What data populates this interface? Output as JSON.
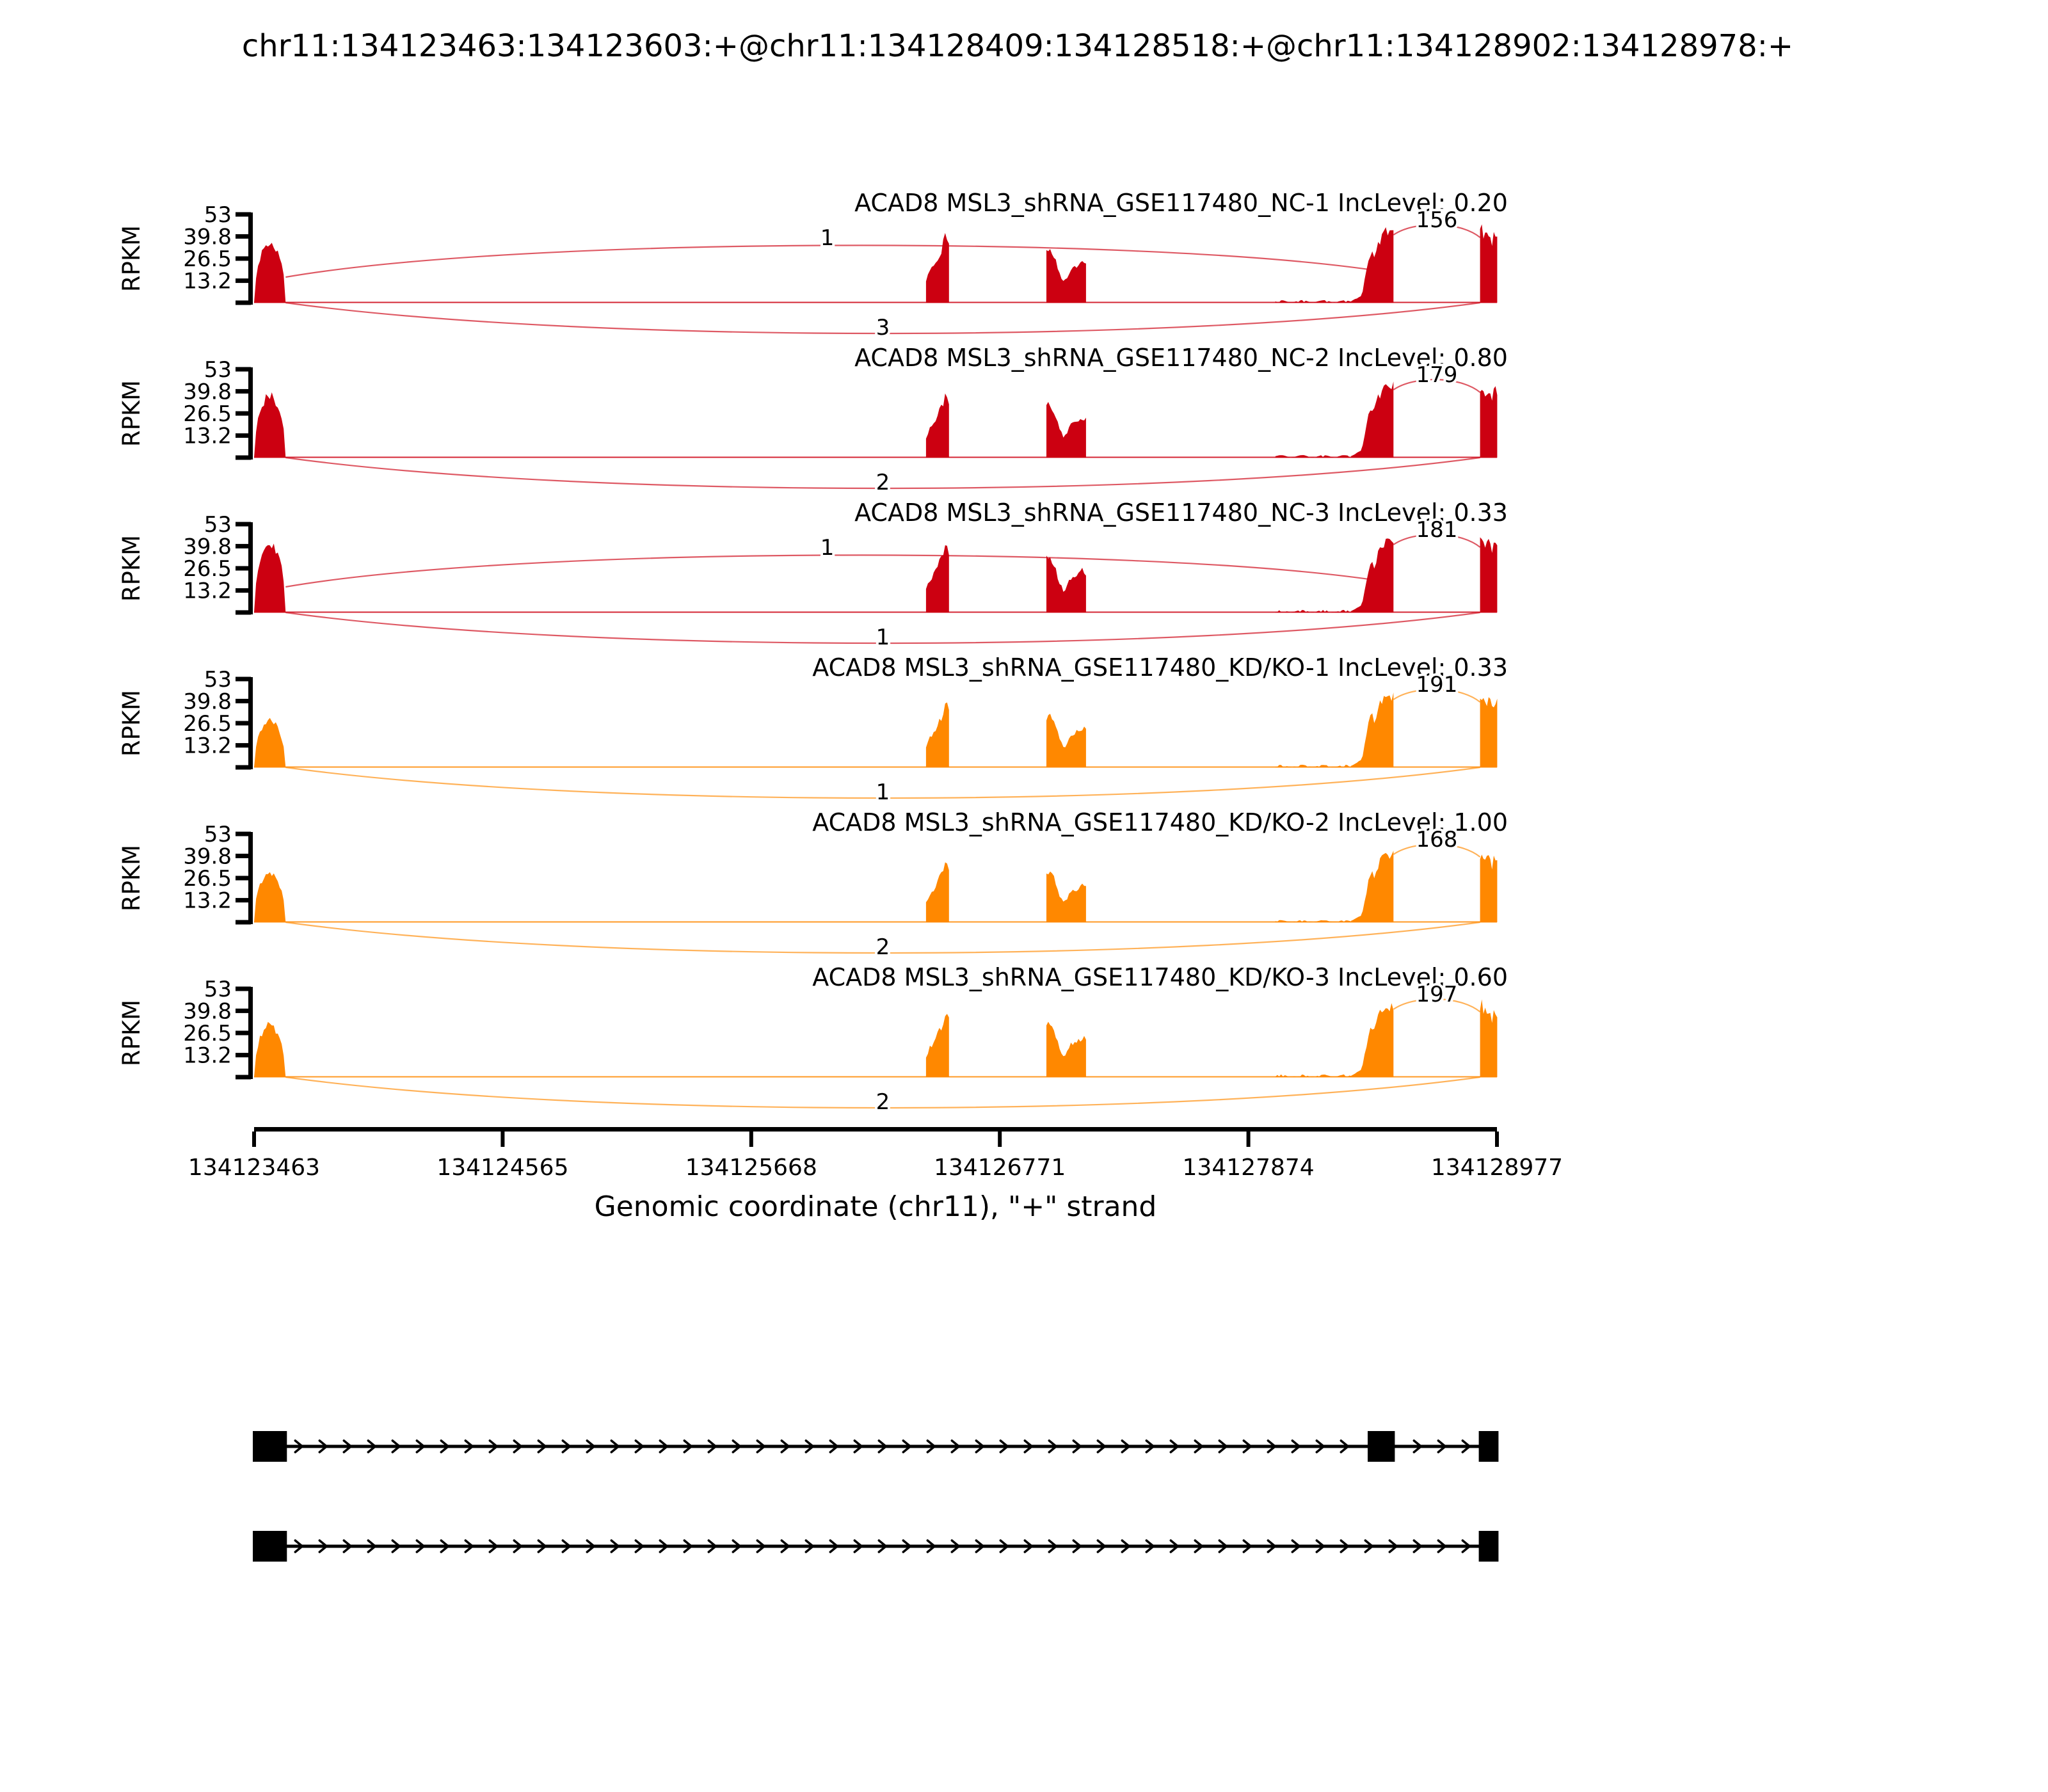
{
  "title": "chr11:134123463:134123603:+@chr11:134128409:134128518:+@chr11:134128902:134128978:+",
  "chart_data": {
    "type": "sashimi",
    "title": "chr11:134123463:134123603:+@chr11:134128409:134128518:+@chr11:134128902:134128978:+",
    "xlabel": "Genomic coordinate (chr11), \"+\" strand",
    "ylabel": "RPKM",
    "strand": "+",
    "chromosome": "chr11",
    "genomic_range": [
      134123463,
      134128977
    ],
    "x_ticks": [
      134123463,
      134124565,
      134125668,
      134126771,
      134127874,
      134128977
    ],
    "y_ticks": [
      53,
      39.8,
      26.5,
      13.2
    ],
    "ymax": 53,
    "colors": {
      "sample1": "#CC0011",
      "sample2": "#FF8800"
    },
    "coverage_regions": [
      {
        "id": "exon1",
        "start": 134123463,
        "end": 134123603,
        "shape": "dome"
      },
      {
        "id": "midA",
        "start": 134126444,
        "end": 134126546,
        "shape": "ramp-spike"
      },
      {
        "id": "midB",
        "start": 134126978,
        "end": 134127154,
        "shape": "notched"
      },
      {
        "id": "lowfill",
        "start": 134127994,
        "end": 134128340,
        "shape": "low"
      },
      {
        "id": "exonC",
        "start": 134128330,
        "end": 134128518,
        "shape": "tail-body"
      },
      {
        "id": "exonD",
        "start": 134128902,
        "end": 134128978,
        "shape": "spike-left"
      }
    ],
    "tracks": [
      {
        "label": "ACAD8 MSL3_shRNA_GSE117480_NC-1 IncLevel: 0.20",
        "group": "sample1",
        "inc_level": "0.20",
        "amplitudes": {
          "exon1": 36,
          "midA": 40,
          "midB": 33,
          "lowfill": 1.5,
          "exonC": 43,
          "exonD": 45
        },
        "junctions": [
          {
            "from": 134123603,
            "to": 134128409,
            "count": 1,
            "type": "top"
          },
          {
            "from": 134123603,
            "to": 134128902,
            "count": 3,
            "type": "bottom"
          },
          {
            "from": 134128518,
            "to": 134128902,
            "count": 156,
            "type": "short"
          }
        ]
      },
      {
        "label": "ACAD8 MSL3_shRNA_GSE117480_NC-2 IncLevel: 0.80",
        "group": "sample1",
        "inc_level": "0.80",
        "amplitudes": {
          "exon1": 37,
          "midA": 38,
          "midB": 32,
          "lowfill": 1.5,
          "exonC": 44,
          "exonD": 44
        },
        "junctions": [
          {
            "from": 134123603,
            "to": 134128902,
            "count": 2,
            "type": "bottom"
          },
          {
            "from": 134128518,
            "to": 134128902,
            "count": 179,
            "type": "short"
          }
        ]
      },
      {
        "label": "ACAD8 MSL3_shRNA_GSE117480_NC-3 IncLevel: 0.33",
        "group": "sample1",
        "inc_level": "0.33",
        "amplitudes": {
          "exon1": 42,
          "midA": 41,
          "midB": 34,
          "lowfill": 1.5,
          "exonC": 43,
          "exonD": 45
        },
        "junctions": [
          {
            "from": 134123603,
            "to": 134128409,
            "count": 1,
            "type": "top"
          },
          {
            "from": 134123603,
            "to": 134128902,
            "count": 1,
            "type": "bottom"
          },
          {
            "from": 134128518,
            "to": 134128902,
            "count": 181,
            "type": "short"
          }
        ]
      },
      {
        "label": "ACAD8 MSL3_shRNA_GSE117480_KD/KO-1 IncLevel: 0.33",
        "group": "sample2",
        "inc_level": "0.33",
        "amplitudes": {
          "exon1": 28,
          "midA": 38,
          "midB": 32,
          "lowfill": 1.5,
          "exonC": 44,
          "exonD": 44
        },
        "junctions": [
          {
            "from": 134123603,
            "to": 134128902,
            "count": 1,
            "type": "bottom"
          },
          {
            "from": 134128518,
            "to": 134128902,
            "count": 191,
            "type": "short"
          }
        ]
      },
      {
        "label": "ACAD8 MSL3_shRNA_GSE117480_KD/KO-2 IncLevel: 1.00",
        "group": "sample2",
        "inc_level": "1.00",
        "amplitudes": {
          "exon1": 30,
          "midA": 36,
          "midB": 30,
          "lowfill": 1.2,
          "exonC": 42,
          "exonD": 43
        },
        "junctions": [
          {
            "from": 134123603,
            "to": 134128902,
            "count": 2,
            "type": "bottom"
          },
          {
            "from": 134128518,
            "to": 134128902,
            "count": 168,
            "type": "short"
          }
        ]
      },
      {
        "label": "ACAD8 MSL3_shRNA_GSE117480_KD/KO-3 IncLevel: 0.60",
        "group": "sample2",
        "inc_level": "0.60",
        "amplitudes": {
          "exon1": 31,
          "midA": 38,
          "midB": 32,
          "lowfill": 1.5,
          "exonC": 44,
          "exonD": 44
        },
        "junctions": [
          {
            "from": 134123603,
            "to": 134128902,
            "count": 2,
            "type": "bottom"
          },
          {
            "from": 134128518,
            "to": 134128902,
            "count": 197,
            "type": "short"
          }
        ]
      }
    ],
    "gene_models": [
      {
        "exons": [
          [
            134123463,
            134123603
          ],
          [
            134128409,
            134128518
          ],
          [
            134128902,
            134128978
          ]
        ]
      },
      {
        "exons": [
          [
            134123463,
            134123603
          ],
          [
            134128902,
            134128978
          ]
        ]
      }
    ]
  }
}
